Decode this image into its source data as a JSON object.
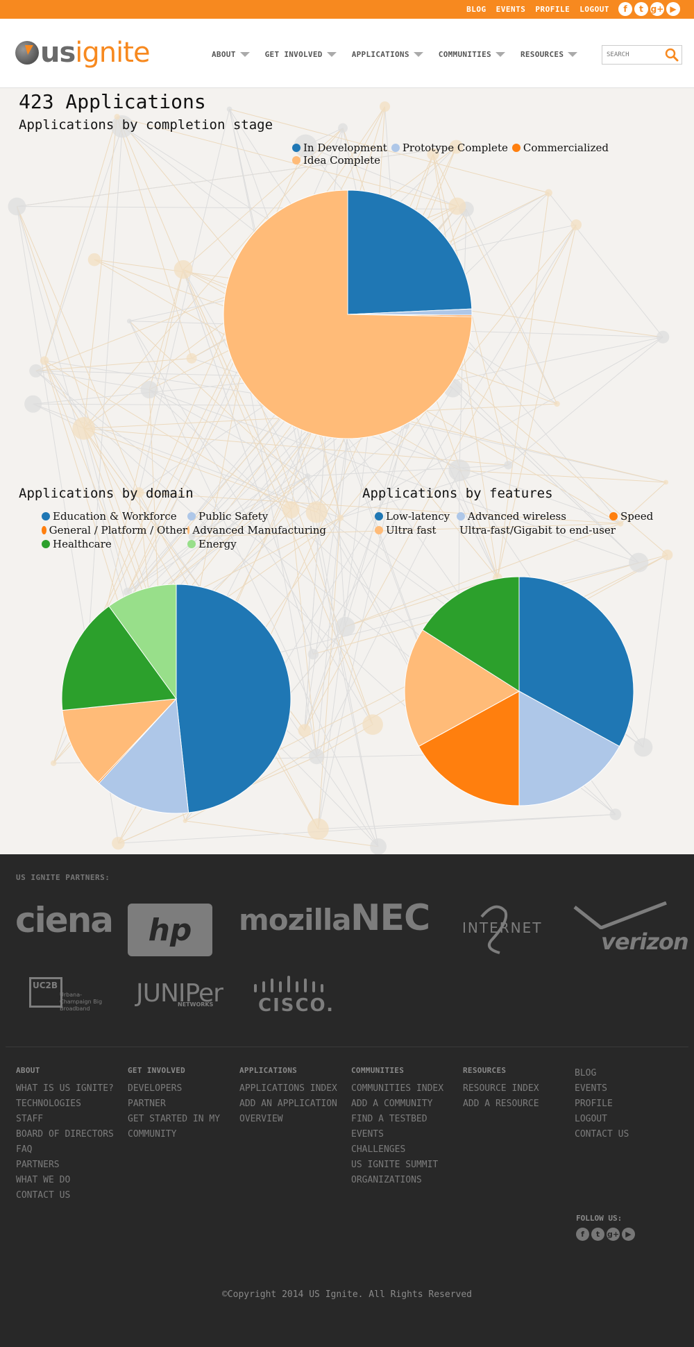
{
  "topbar": {
    "links": [
      "BLOG",
      "EVENTS",
      "PROFILE",
      "LOGOUT"
    ],
    "social_icons": [
      "facebook-icon",
      "twitter-icon",
      "google-plus-icon",
      "youtube-icon"
    ],
    "social_glyphs": [
      "f",
      "t",
      "g+",
      "▶"
    ]
  },
  "header": {
    "logo_us": "us",
    "logo_ignite": "ignite",
    "nav": [
      "ABOUT",
      "GET INVOLVED",
      "APPLICATIONS",
      "COMMUNITIES",
      "RESOURCES"
    ],
    "search_placeholder": "SEARCH"
  },
  "colors": {
    "accent": "#f7891f",
    "in_development": "#1f77b4",
    "prototype_complete": "#aec7e8",
    "commercialized": "#ff7f0e",
    "idea_complete": "#ffbb78",
    "green": "#2ca02c",
    "light_green": "#98df8a"
  },
  "main": {
    "title": "423 Applications",
    "completion_title": "Applications by completion stage",
    "domain_title": "Applications by domain",
    "features_title": "Applications by features"
  },
  "chart_data": [
    {
      "type": "pie",
      "title": "Applications by completion stage",
      "legend_position": "top-right",
      "series": [
        {
          "name": "In Development",
          "value": 24.3,
          "color": "#1f77b4"
        },
        {
          "name": "Prototype Complete",
          "value": 0.8,
          "color": "#aec7e8"
        },
        {
          "name": "Commercialized",
          "value": 0.2,
          "color": "#ff7f0e"
        },
        {
          "name": "Idea Complete",
          "value": 74.7,
          "color": "#ffbb78"
        }
      ]
    },
    {
      "type": "pie",
      "title": "Applications by domain",
      "legend_position": "top",
      "series": [
        {
          "name": "Education & Workforce",
          "value": 48.3,
          "color": "#1f77b4"
        },
        {
          "name": "Public Safety",
          "value": 13.5,
          "color": "#aec7e8"
        },
        {
          "name": "General / Platform / Other",
          "value": 0.2,
          "color": "#ff7f0e"
        },
        {
          "name": "Advanced Manufacturing",
          "value": 11.4,
          "color": "#ffbb78"
        },
        {
          "name": "Healthcare",
          "value": 16.6,
          "color": "#2ca02c"
        },
        {
          "name": "Energy",
          "value": 10.0,
          "color": "#98df8a"
        }
      ]
    },
    {
      "type": "pie",
      "title": "Applications by features",
      "legend_position": "top",
      "series": [
        {
          "name": "Low-latency",
          "value": 33.0,
          "color": "#1f77b4"
        },
        {
          "name": "Advanced wireless",
          "value": 17.0,
          "color": "#aec7e8"
        },
        {
          "name": "Speed",
          "value": 17.0,
          "color": "#ff7f0e"
        },
        {
          "name": "Ultra fast",
          "value": 17.0,
          "color": "#ffbb78"
        },
        {
          "name": "Ultra-fast/Gigabit to end-user",
          "value": 16.0,
          "color": "#2ca02c"
        }
      ]
    }
  ],
  "footer": {
    "partners_title": "US IGNITE PARTNERS:",
    "partners": [
      "ciena",
      "hp",
      "mozilla",
      "NEC",
      "INTERNET",
      "verizon",
      "UC2B",
      "Urbana-Champaign Big Broadband",
      "JUNIPer",
      "NETWORKS",
      "CISCO."
    ],
    "columns": [
      {
        "head": "ABOUT",
        "links": [
          "WHAT IS US IGNITE?",
          "TECHNOLOGIES",
          "STAFF",
          "BOARD OF DIRECTORS",
          "FAQ",
          "PARTNERS",
          "WHAT WE DO",
          "CONTACT US"
        ]
      },
      {
        "head": "GET INVOLVED",
        "links": [
          "DEVELOPERS",
          "PARTNER",
          "GET STARTED IN MY",
          "COMMUNITY"
        ]
      },
      {
        "head": "APPLICATIONS",
        "links": [
          "APPLICATIONS INDEX",
          "ADD AN APPLICATION",
          "OVERVIEW"
        ]
      },
      {
        "head": "COMMUNITIES",
        "links": [
          "COMMUNITIES INDEX",
          "ADD A COMMUNITY",
          "FIND A TESTBED",
          "EVENTS",
          "CHALLENGES",
          "US IGNITE SUMMIT",
          "ORGANIZATIONS"
        ]
      },
      {
        "head": "RESOURCES",
        "links": [
          "RESOURCE INDEX",
          "ADD A RESOURCE"
        ]
      },
      {
        "head": "",
        "links": [
          "BLOG",
          "EVENTS",
          "PROFILE",
          "LOGOUT",
          "CONTACT US"
        ]
      }
    ],
    "follow_us": "FOLLOW US:",
    "copyright": "©Copyright 2014 US Ignite. All Rights Reserved"
  }
}
